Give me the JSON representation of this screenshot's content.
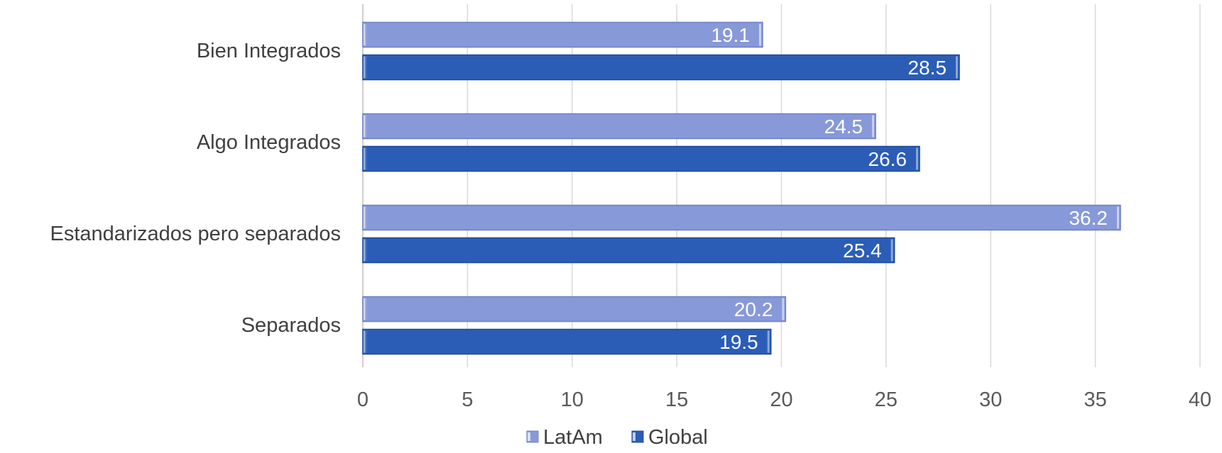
{
  "chart_data": {
    "type": "bar",
    "orientation": "horizontal",
    "categories": [
      "Bien Integrados",
      "Algo Integrados",
      "Estandarizados pero separados",
      "Separados"
    ],
    "series": [
      {
        "name": "LatAm",
        "values": [
          19.1,
          24.5,
          36.2,
          20.2
        ],
        "color": "#8799d8"
      },
      {
        "name": "Global",
        "values": [
          28.5,
          26.6,
          25.4,
          19.5
        ],
        "color": "#2b5db7"
      }
    ],
    "data_labels": {
      "LatAm": [
        "19.1",
        "24.5",
        "36.2",
        "20.2"
      ],
      "Global": [
        "28.5",
        "26.6",
        "25.4",
        "19.5"
      ]
    },
    "xlim": [
      0,
      40
    ],
    "x_ticks": [
      0,
      5,
      10,
      15,
      20,
      25,
      30,
      35,
      40
    ],
    "tick_labels": [
      "0",
      "5",
      "10",
      "15",
      "20",
      "25",
      "30",
      "35",
      "40"
    ],
    "grid": "vertical",
    "legend_position": "bottom",
    "title": "",
    "xlabel": "",
    "ylabel": ""
  }
}
